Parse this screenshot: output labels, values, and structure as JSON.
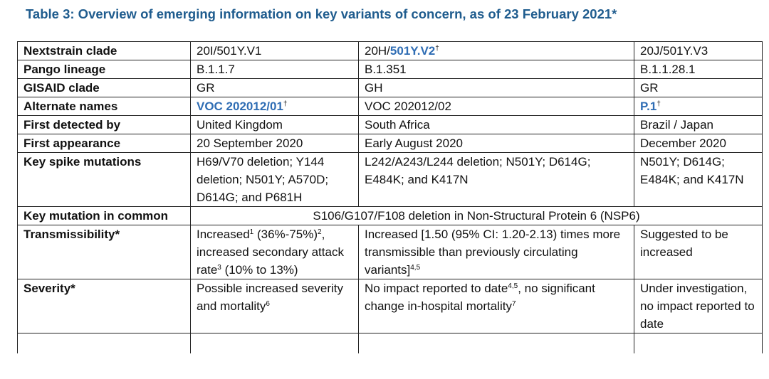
{
  "title": "Table 3: Overview of emerging information on key variants of concern, as of 23 February 2021*",
  "rows": {
    "nextstrain": {
      "label": "Nextstrain clade",
      "v1": "20I/501Y.V1",
      "v2_prefix": "20H/",
      "v2_link": "501Y.V2",
      "v2_mark": "†",
      "v3": "20J/501Y.V3"
    },
    "pango": {
      "label": "Pango lineage",
      "v1": "B.1.1.7",
      "v2": "B.1.351",
      "v3": "B.1.1.28.1"
    },
    "gisaid": {
      "label": "GISAID clade",
      "v1": "GR",
      "v2": "GH",
      "v3": "GR"
    },
    "alternate": {
      "label": "Alternate names",
      "v1_link": "VOC 202012/01",
      "v1_mark": "†",
      "v2": "VOC 202012/02",
      "v3_link": "P.1",
      "v3_mark": "†"
    },
    "first_detected": {
      "label": "First detected by",
      "v1": "United Kingdom",
      "v2": "South Africa",
      "v3": "Brazil / Japan"
    },
    "first_appearance": {
      "label": "First appearance",
      "v1": "20 September 2020",
      "v2": "Early August 2020",
      "v3": "December 2020"
    },
    "spike": {
      "label": "Key spike mutations",
      "v1": "H69/V70 deletion; Y144 deletion; N501Y; A570D; D614G; and P681H",
      "v2": "L242/A243/L244 deletion; N501Y; D614G; E484K; and K417N",
      "v3": "N501Y; D614G; E484K; and K417N"
    },
    "common": {
      "label": "Key mutation in common",
      "value": "S106/G107/F108 deletion in Non-Structural Protein 6 (NSP6)"
    },
    "transmissibility": {
      "label": "Transmissibility*",
      "v1_a": "Increased",
      "v1_a_sup": "1",
      "v1_b": " (36%-75%)",
      "v1_b_sup": "2",
      "v1_c": ", increased secondary attack rate",
      "v1_c_sup": "3",
      "v1_d": " (10% to 13%)",
      "v2_a": "Increased [1.50 (95% CI: 1.20-2.13) times more transmissible than previously circulating variants]",
      "v2_sup": "4,5",
      "v3": "Suggested to be increased"
    },
    "severity": {
      "label": "Severity*",
      "v1_a": "Possible increased severity and mortality",
      "v1_sup": "6",
      "v2_a": "No impact reported to date",
      "v2_a_sup": "4,5",
      "v2_b": ", no significant change in-hospital mortality",
      "v2_b_sup": "7",
      "v3": "Under investigation, no impact reported to date"
    }
  }
}
